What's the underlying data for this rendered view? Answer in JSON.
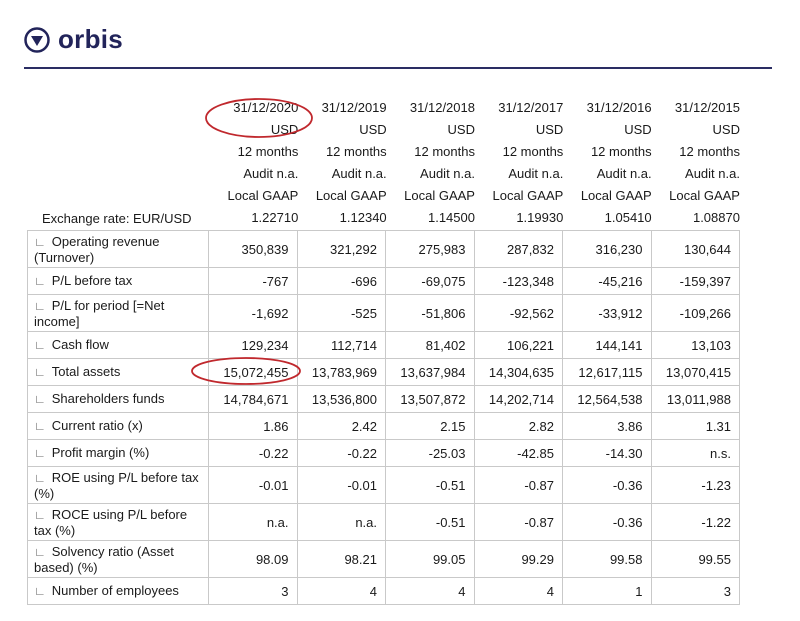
{
  "brand": {
    "name": "orbis",
    "color": "#22245a",
    "icon": "orbis-logo-icon"
  },
  "header": {
    "dates": [
      "31/12/2020",
      "31/12/2019",
      "31/12/2018",
      "31/12/2017",
      "31/12/2016",
      "31/12/2015"
    ],
    "currency": [
      "USD",
      "USD",
      "USD",
      "USD",
      "USD",
      "USD"
    ],
    "period": [
      "12 months",
      "12 months",
      "12 months",
      "12 months",
      "12 months",
      "12 months"
    ],
    "audit": [
      "Audit n.a.",
      "Audit n.a.",
      "Audit n.a.",
      "Audit n.a.",
      "Audit n.a.",
      "Audit n.a."
    ],
    "gaap": [
      "Local GAAP",
      "Local GAAP",
      "Local GAAP",
      "Local GAAP",
      "Local GAAP",
      "Local GAAP"
    ],
    "exchange_label": "Exchange rate: EUR/USD",
    "exchange": [
      "1.22710",
      "1.12340",
      "1.14500",
      "1.19930",
      "1.05410",
      "1.08870"
    ]
  },
  "rows": [
    {
      "label": "Operating revenue (Turnover)",
      "values": [
        "350,839",
        "321,292",
        "275,983",
        "287,832",
        "316,230",
        "130,644"
      ]
    },
    {
      "label": "P/L before tax",
      "values": [
        "-767",
        "-696",
        "-69,075",
        "-123,348",
        "-45,216",
        "-159,397"
      ]
    },
    {
      "label": "P/L for period [=Net income]",
      "values": [
        "-1,692",
        "-525",
        "-51,806",
        "-92,562",
        "-33,912",
        "-109,266"
      ]
    },
    {
      "label": "Cash flow",
      "values": [
        "129,234",
        "112,714",
        "81,402",
        "106,221",
        "144,141",
        "13,103"
      ]
    },
    {
      "label": "Total assets",
      "values": [
        "15,072,455",
        "13,783,969",
        "13,637,984",
        "14,304,635",
        "12,617,115",
        "13,070,415"
      ]
    },
    {
      "label": "Shareholders funds",
      "values": [
        "14,784,671",
        "13,536,800",
        "13,507,872",
        "14,202,714",
        "12,564,538",
        "13,011,988"
      ]
    },
    {
      "label": "Current ratio (x)",
      "values": [
        "1.86",
        "2.42",
        "2.15",
        "2.82",
        "3.86",
        "1.31"
      ]
    },
    {
      "label": "Profit margin (%)",
      "values": [
        "-0.22",
        "-0.22",
        "-25.03",
        "-42.85",
        "-14.30",
        "n.s."
      ]
    },
    {
      "label": "ROE using P/L before tax (%)",
      "values": [
        "-0.01",
        "-0.01",
        "-0.51",
        "-0.87",
        "-0.36",
        "-1.23"
      ]
    },
    {
      "label": "ROCE using P/L before tax (%)",
      "values": [
        "n.a.",
        "n.a.",
        "-0.51",
        "-0.87",
        "-0.36",
        "-1.22"
      ]
    },
    {
      "label": "Solvency ratio (Asset based) (%)",
      "values": [
        "98.09",
        "98.21",
        "99.05",
        "99.29",
        "99.58",
        "99.55"
      ]
    },
    {
      "label": "Number of employees",
      "values": [
        "3",
        "4",
        "4",
        "4",
        "1",
        "3"
      ]
    }
  ],
  "annotation_color": "#c0282d"
}
